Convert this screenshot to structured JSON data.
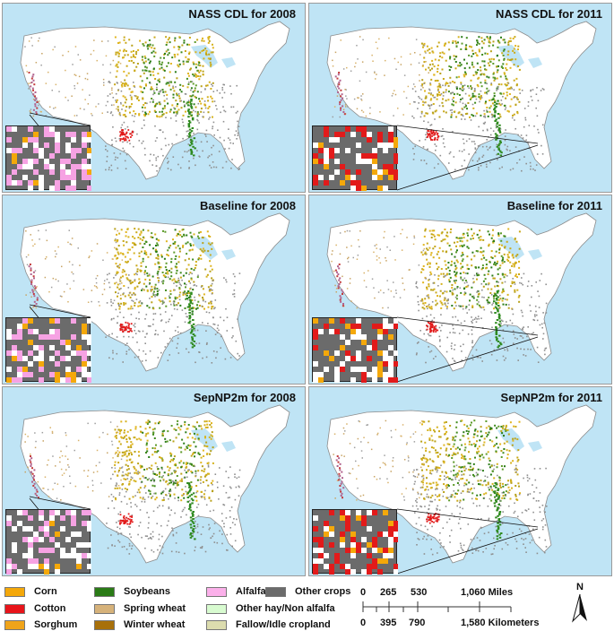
{
  "panels": [
    {
      "title": "NASS CDL for 2008",
      "region": "west-coast",
      "colors": [
        "#f6a2e3",
        "#f6a2e3",
        "#f4a80a",
        "#ffffff",
        "#ffffff",
        "#f6a2e3"
      ]
    },
    {
      "title": "NASS CDL for 2011",
      "region": "southeast",
      "colors": [
        "#e21a1a",
        "#e21a1a",
        "#f4a80a",
        "#ffffff",
        "#e21a1a",
        "#ffffff"
      ]
    },
    {
      "title": "Baseline for 2008",
      "region": "west-coast",
      "colors": [
        "#f6a2e3",
        "#ffffff",
        "#ffffff",
        "#f6a2e3",
        "#ffffff",
        "#f4a80a"
      ]
    },
    {
      "title": "Baseline for 2011",
      "region": "southeast",
      "colors": [
        "#e21a1a",
        "#ffffff",
        "#f4a80a",
        "#ffffff",
        "#e21a1a",
        "#ffffff"
      ]
    },
    {
      "title": "SepNP2m for 2008",
      "region": "west-coast",
      "colors": [
        "#f6a2e3",
        "#ffffff",
        "#f4a80a",
        "#f6a2e3",
        "#ffffff",
        "#ffffff"
      ]
    },
    {
      "title": "SepNP2m for 2011",
      "region": "southeast",
      "colors": [
        "#e21a1a",
        "#e21a1a",
        "#e21a1a",
        "#ffffff",
        "#f4a80a",
        "#ffffff"
      ]
    }
  ],
  "legend": [
    {
      "label": "Corn",
      "color": "#f4a80a"
    },
    {
      "label": "Cotton",
      "color": "#e8141a"
    },
    {
      "label": "Sorghum",
      "color": "#f0a41a"
    },
    {
      "label": "Soybeans",
      "color": "#2a7b16"
    },
    {
      "label": "Spring wheat",
      "color": "#d6b27a"
    },
    {
      "label": "Winter wheat",
      "color": "#a8700a"
    },
    {
      "label": "Alfalfa",
      "color": "#fbb0ea"
    },
    {
      "label": "Other hay/Non alfalfa",
      "color": "#d8fbd0"
    },
    {
      "label": "Fallow/Idle cropland",
      "color": "#dcdcae"
    },
    {
      "label": "Other crops",
      "color": "#6b6b6b"
    }
  ],
  "scale": {
    "miles_ticks": [
      "0",
      "265",
      "530",
      "1,060 Miles"
    ],
    "km_ticks": [
      "0",
      "395",
      "790",
      "1,580 Kilometers"
    ]
  },
  "north_label": "N"
}
